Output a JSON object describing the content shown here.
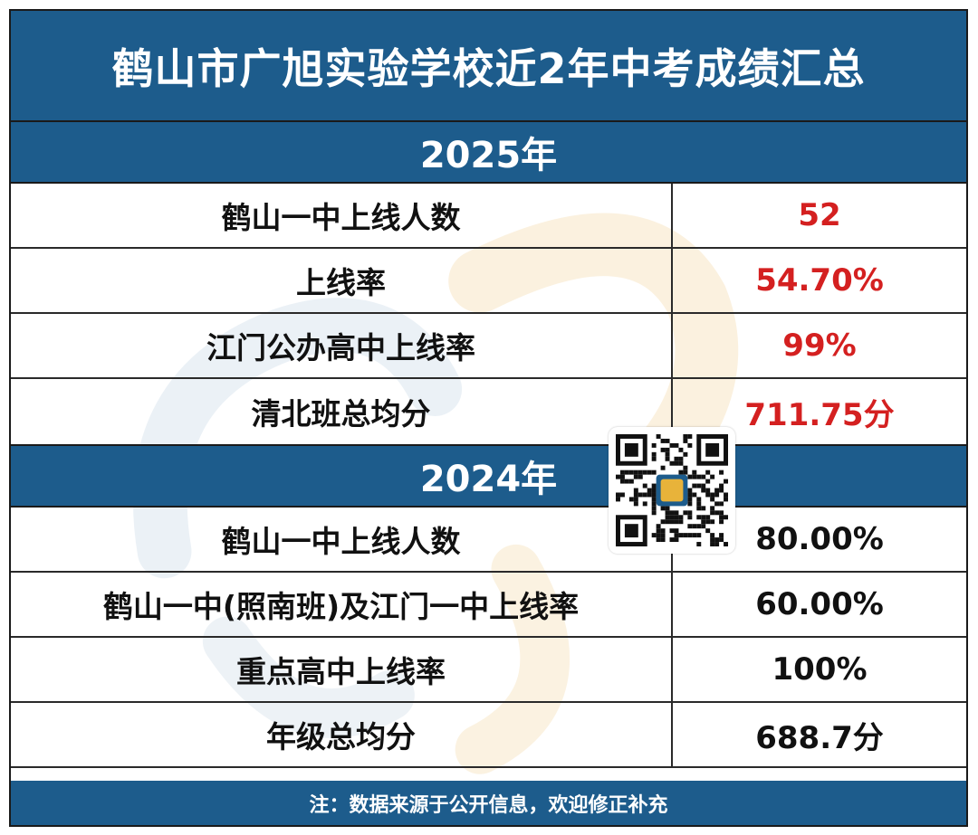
{
  "title": "鹤山市广旭实验学校近2年中考成绩汇总",
  "sections": [
    {
      "year": "2025年",
      "rows": [
        {
          "label": "鹤山一中上线人数",
          "value": "52"
        },
        {
          "label": "上线率",
          "value": "54.70%"
        },
        {
          "label": "江门公办高中上线率",
          "value": "99%"
        },
        {
          "label": "清北班总均分",
          "value": "711.75分"
        }
      ]
    },
    {
      "year": "2024年",
      "rows": [
        {
          "label": "鹤山一中上线人数",
          "value": "80.00%"
        },
        {
          "label": "鹤山一中(照南班)及江门一中上线率",
          "value": "60.00%"
        },
        {
          "label": "重点高中上线率",
          "value": "100%"
        },
        {
          "label": "年级总均分",
          "value": "688.7分"
        }
      ]
    }
  ],
  "footer": "注：数据来源于公开信息，欢迎修正补充",
  "colors": {
    "header_blue": "#1d5c8c",
    "value_red_2025": "#d42020",
    "value_black_2024": "#111111"
  },
  "icons": {
    "qr": "qr-code-icon"
  }
}
